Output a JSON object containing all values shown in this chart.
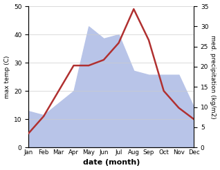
{
  "months": [
    "Jan",
    "Feb",
    "Mar",
    "Apr",
    "May",
    "Jun",
    "Jul",
    "Aug",
    "Sep",
    "Oct",
    "Nov",
    "Dec"
  ],
  "temperature": [
    5,
    11,
    20,
    29,
    29,
    31,
    37,
    49,
    38,
    20,
    14,
    10
  ],
  "precipitation": [
    9,
    8,
    11,
    14,
    30,
    27,
    28,
    19,
    18,
    18,
    18,
    10
  ],
  "temp_color": "#b03030",
  "precip_fill_color": "#b8c4e8",
  "ylabel_left": "max temp (C)",
  "ylabel_right": "med. precipitation (kg/m2)",
  "xlabel": "date (month)",
  "ylim_left": [
    0,
    50
  ],
  "ylim_right": [
    0,
    35
  ],
  "yticks_left": [
    0,
    10,
    20,
    30,
    40,
    50
  ],
  "yticks_right": [
    0,
    5,
    10,
    15,
    20,
    25,
    30,
    35
  ],
  "bg_color": "#ffffff",
  "grid_color": "#cccccc"
}
